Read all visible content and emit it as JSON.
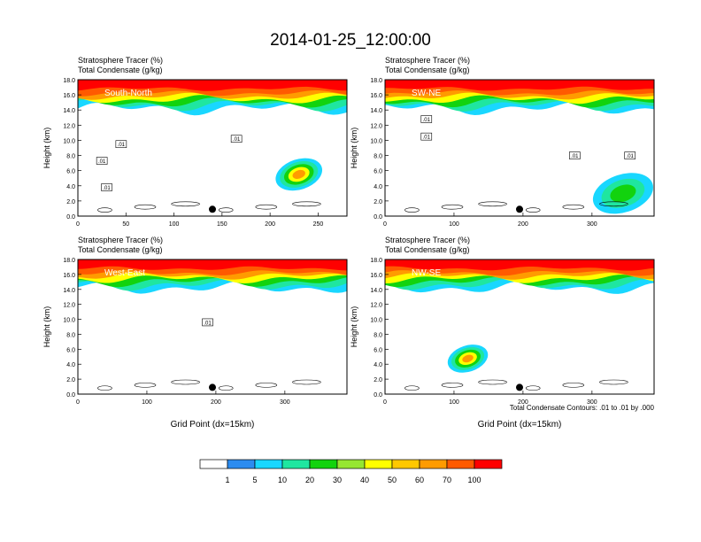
{
  "title": "2014-01-25_12:00:00",
  "panel_header": {
    "line1": "Stratosphere Tracer   (%)",
    "line2": "Total Condensate   (g/kg)"
  },
  "ylabel": "Height (km)",
  "xlabel": "Grid Point (dx=15km)",
  "footnote": "Total Condensate Contours: .01 to .01 by .000",
  "contour_label": ".01",
  "chart_data": [
    {
      "type": "heatmap",
      "panel": "South-North",
      "xlim": [
        0,
        280
      ],
      "ylim": [
        0,
        18
      ],
      "xticks": [
        0,
        50,
        100,
        150,
        200,
        250
      ],
      "yticks": [
        "0.0",
        "2.0",
        "4.0",
        "6.0",
        "8.0",
        "10.0",
        "12.0",
        "14.0",
        "16.0",
        "18.0"
      ],
      "show_xlabel": false,
      "features": [
        {
          "x": [
            205,
            255
          ],
          "y": [
            3.5,
            7.5
          ],
          "level": 70
        }
      ],
      "contour_labels": [
        {
          "x": 45,
          "y": 9.5
        },
        {
          "x": 25,
          "y": 7.3
        },
        {
          "x": 30,
          "y": 3.8
        },
        {
          "x": 165,
          "y": 10.2
        }
      ],
      "marker": {
        "x": 140,
        "y": 0.9
      }
    },
    {
      "type": "heatmap",
      "panel": "SW-NE",
      "xlim": [
        0,
        390
      ],
      "ylim": [
        0,
        18
      ],
      "xticks": [
        0,
        100,
        200,
        300
      ],
      "yticks": [
        "0.0",
        "2.0",
        "4.0",
        "6.0",
        "8.0",
        "10.0",
        "12.0",
        "14.0",
        "16.0",
        "18.0"
      ],
      "show_xlabel": false,
      "features": [
        {
          "x": [
            300,
            390
          ],
          "y": [
            0.5,
            5.5
          ],
          "level": 30
        }
      ],
      "contour_labels": [
        {
          "x": 60,
          "y": 12.8
        },
        {
          "x": 60,
          "y": 10.5
        },
        {
          "x": 275,
          "y": 8.0
        },
        {
          "x": 355,
          "y": 8.0
        }
      ],
      "marker": {
        "x": 195,
        "y": 0.9
      }
    },
    {
      "type": "heatmap",
      "panel": "West-East",
      "xlim": [
        0,
        390
      ],
      "ylim": [
        0,
        18
      ],
      "xticks": [
        0,
        100,
        200,
        300
      ],
      "yticks": [
        "0.0",
        "2.0",
        "4.0",
        "6.0",
        "8.0",
        "10.0",
        "12.0",
        "14.0",
        "16.0",
        "18.0"
      ],
      "show_xlabel": true,
      "features": [],
      "contour_labels": [
        {
          "x": 188,
          "y": 9.6
        }
      ],
      "marker": {
        "x": 195,
        "y": 0.9
      }
    },
    {
      "type": "heatmap",
      "panel": "NW-SE",
      "xlim": [
        0,
        390
      ],
      "ylim": [
        0,
        18
      ],
      "xticks": [
        0,
        100,
        200,
        300
      ],
      "yticks": [
        "0.0",
        "2.0",
        "4.0",
        "6.0",
        "8.0",
        "10.0",
        "12.0",
        "14.0",
        "16.0",
        "18.0"
      ],
      "show_xlabel": true,
      "features": [
        {
          "x": [
            90,
            150
          ],
          "y": [
            3.0,
            6.5
          ],
          "level": 70
        }
      ],
      "contour_labels": [],
      "marker": {
        "x": 195,
        "y": 0.9
      }
    }
  ],
  "colorbar": {
    "levels": [
      "1",
      "5",
      "10",
      "20",
      "30",
      "40",
      "50",
      "60",
      "70",
      "100"
    ],
    "colors": [
      "#ffffff",
      "#2c8cf0",
      "#19d7ff",
      "#1fe6a0",
      "#12d30e",
      "#96e631",
      "#ffff00",
      "#ffc800",
      "#ff9b00",
      "#ff5a00",
      "#ff0000"
    ]
  }
}
